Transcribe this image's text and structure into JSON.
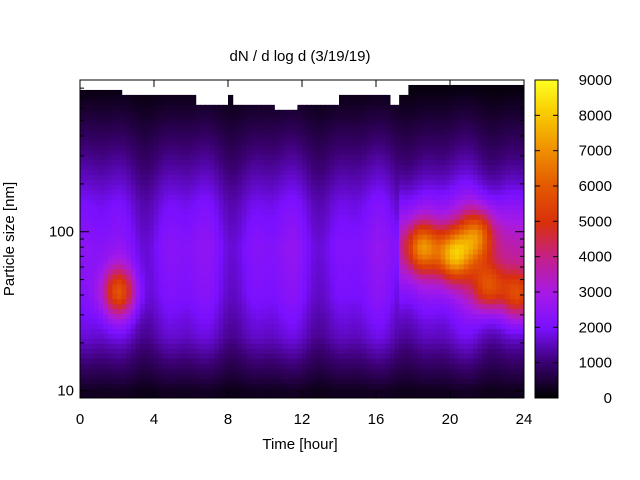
{
  "chart_data": {
    "type": "heatmap",
    "title": "dN / d log d (3/19/19)",
    "xlabel": "Time [hour]",
    "ylabel": "Particle size [nm]",
    "xlim": [
      0,
      24
    ],
    "ylim": [
      9,
      900
    ],
    "yscale": "log",
    "x_ticks": [
      0,
      4,
      8,
      12,
      16,
      20,
      24
    ],
    "y_ticks": [
      10,
      100
    ],
    "colorbar": {
      "min": 0,
      "max": 9000,
      "ticks": [
        0,
        1000,
        2000,
        3000,
        4000,
        5000,
        6000,
        7000,
        8000,
        9000
      ],
      "palette": "black-purple-red-orange-yellow"
    },
    "grid": false,
    "size_profile_nm": [
      [
        10,
        300
      ],
      [
        14,
        900
      ],
      [
        22,
        1700
      ],
      [
        40,
        2200
      ],
      [
        80,
        2400
      ],
      [
        150,
        2000
      ],
      [
        300,
        1200
      ],
      [
        550,
        500
      ],
      [
        800,
        150
      ]
    ],
    "hotspots": [
      {
        "time_h": 2.1,
        "size_nm": 42,
        "value": 5600
      },
      {
        "time_h": 18.5,
        "size_nm": 80,
        "value": 5500
      },
      {
        "time_h": 20.2,
        "size_nm": 72,
        "value": 6100
      },
      {
        "time_h": 21.5,
        "size_nm": 95,
        "value": 5200
      },
      {
        "time_h": 22.1,
        "size_nm": 45,
        "value": 5300
      },
      {
        "time_h": 23.7,
        "size_nm": 40,
        "value": 5100
      }
    ],
    "upper_size_limit_nm": [
      [
        0,
        800
      ],
      [
        2.2,
        800
      ],
      [
        2.3,
        700
      ],
      [
        6.2,
        700
      ],
      [
        6.3,
        650
      ],
      [
        8.0,
        650
      ],
      [
        8.1,
        720
      ],
      [
        8.3,
        650
      ],
      [
        10.5,
        650
      ],
      [
        10.6,
        580
      ],
      [
        11.7,
        580
      ],
      [
        11.8,
        640
      ],
      [
        14.0,
        640
      ],
      [
        14.1,
        700
      ],
      [
        16.6,
        700
      ],
      [
        16.7,
        640
      ],
      [
        17.2,
        640
      ],
      [
        17.3,
        720
      ],
      [
        17.6,
        720
      ],
      [
        17.7,
        850
      ],
      [
        24,
        850
      ]
    ]
  }
}
